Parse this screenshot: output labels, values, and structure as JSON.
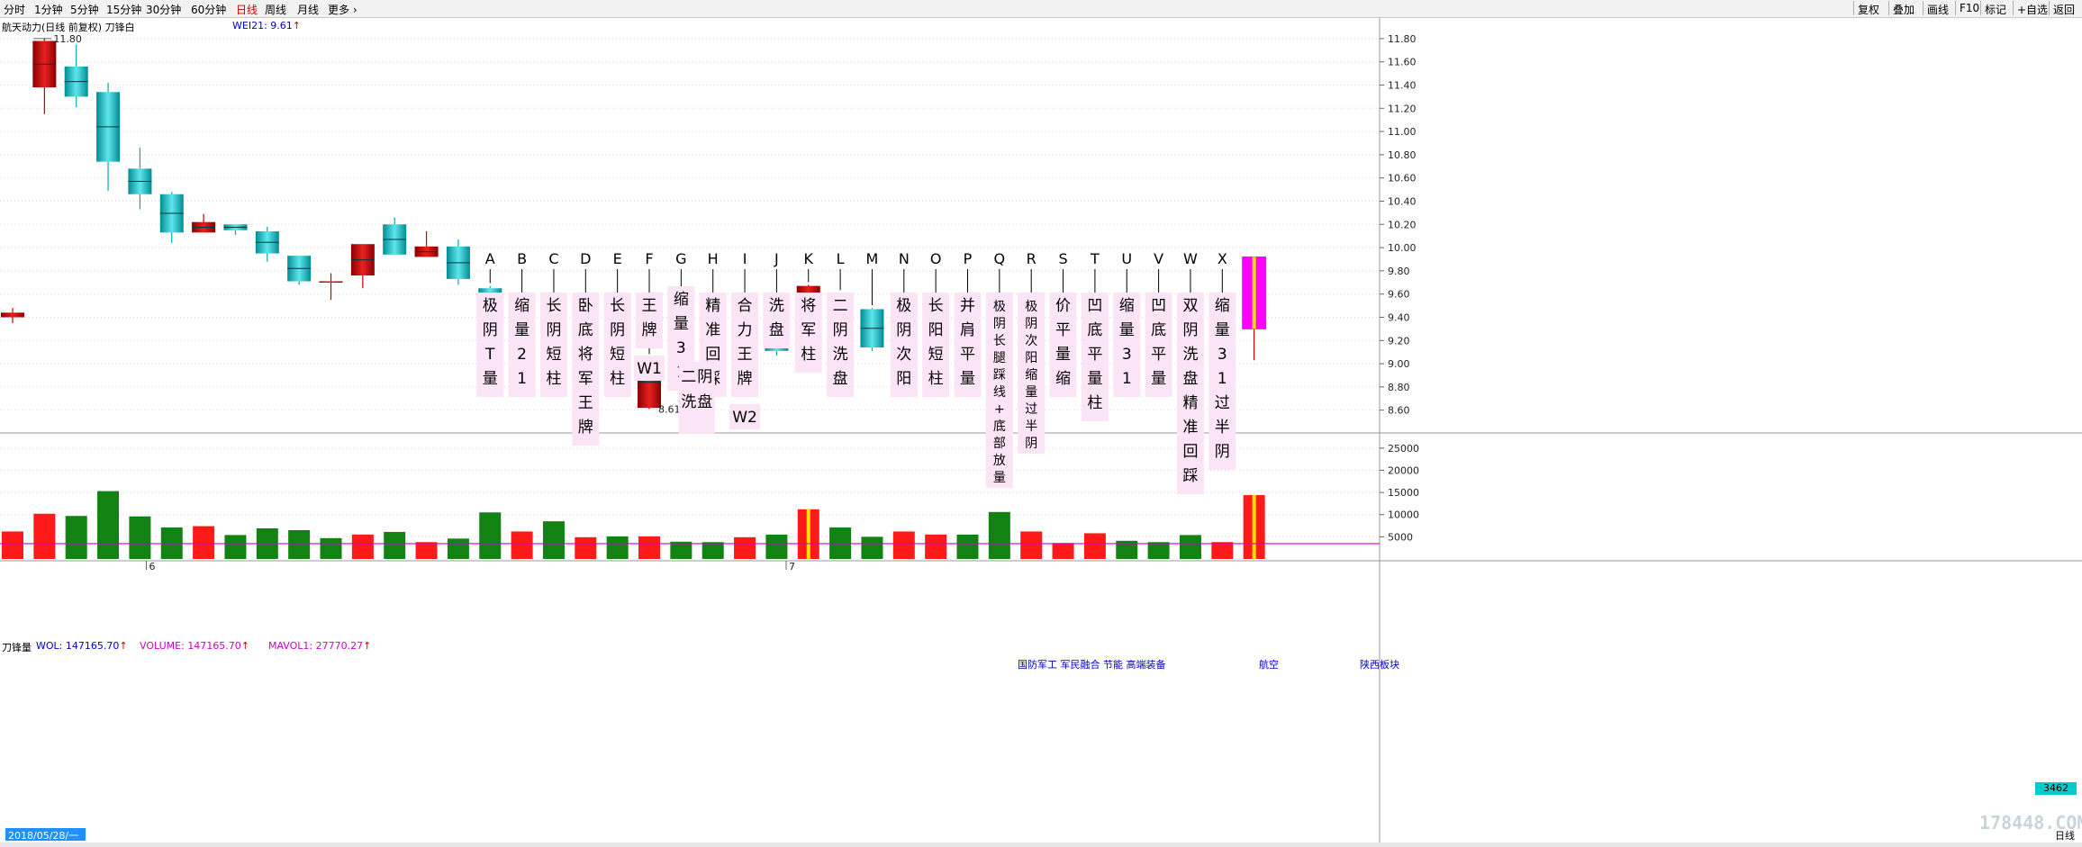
{
  "toolbar": {
    "periods": [
      "分时",
      "1分钟",
      "5分钟",
      "15分钟",
      "30分钟",
      "60分钟",
      "日线",
      "周线",
      "月线",
      "更多 ›"
    ],
    "active_period": "日线",
    "right_buttons": [
      "复权",
      "叠加",
      "画线",
      "F10",
      "标记",
      "+自选",
      "返回"
    ]
  },
  "header": {
    "title": "航天动力(日线 前复权) 刀锋白",
    "indicator": "WEI21: 9.61",
    "indicator_arrow": "↑"
  },
  "volume_header": {
    "title": "刀锋量",
    "wol": "WOL: 147165.70",
    "volume": "VOLUME: 147165.70",
    "mavol": "MAVOL1: 27770.27",
    "arrow": "↑"
  },
  "volume_labels": [
    "国防军工 军民融合 节能 高端装备",
    "航空",
    "陕西板块"
  ],
  "date_box": "2018/05/28/一",
  "volume_current": "3462",
  "watermark": "178448.COM",
  "period_label": "日线",
  "colors": {
    "up": "#cc0000",
    "down": "#00b0b8",
    "special": "#ff00ff",
    "vol_up": "#ff1a1a",
    "vol_down": "#128212",
    "ma_line": "#cc00cc"
  },
  "chart_data": {
    "type": "candlestick",
    "price_axis": {
      "ticks": [
        "11.80",
        "11.60",
        "11.40",
        "11.20",
        "11.00",
        "10.80",
        "10.60",
        "10.40",
        "10.20",
        "10.00",
        "9.80",
        "9.60",
        "9.40",
        "9.20",
        "9.00",
        "8.80",
        "8.60"
      ],
      "ylim": [
        8.52,
        11.9
      ]
    },
    "volume_axis": {
      "ticks": [
        "25000",
        "20000",
        "15000",
        "10000",
        "5000"
      ],
      "ylim": [
        0,
        27000
      ]
    },
    "high_label": "11.80",
    "low_label": "8.61",
    "candles": [
      {
        "o": 9.4,
        "c": 9.44,
        "h": 9.48,
        "l": 9.35
      },
      {
        "o": 11.38,
        "c": 11.78,
        "h": 11.8,
        "l": 11.15
      },
      {
        "o": 11.56,
        "c": 11.3,
        "h": 11.75,
        "l": 11.21
      },
      {
        "o": 11.34,
        "c": 10.74,
        "h": 11.42,
        "l": 10.49
      },
      {
        "o": 10.68,
        "c": 10.46,
        "h": 10.86,
        "l": 10.33
      },
      {
        "o": 10.46,
        "c": 10.13,
        "h": 10.48,
        "l": 10.04
      },
      {
        "o": 10.13,
        "c": 10.22,
        "h": 10.29,
        "l": 10.13
      },
      {
        "o": 10.2,
        "c": 10.15,
        "h": 10.2,
        "l": 10.11
      },
      {
        "o": 10.14,
        "c": 9.95,
        "h": 10.18,
        "l": 9.88
      },
      {
        "o": 9.93,
        "c": 9.71,
        "h": 9.93,
        "l": 9.68
      },
      {
        "o": 9.71,
        "c": 9.71,
        "h": 9.78,
        "l": 9.55
      },
      {
        "o": 9.76,
        "c": 10.03,
        "h": 10.03,
        "l": 9.65
      },
      {
        "o": 10.2,
        "c": 9.94,
        "h": 10.26,
        "l": 9.94
      },
      {
        "o": 9.92,
        "c": 10.01,
        "h": 10.14,
        "l": 9.92
      },
      {
        "o": 10.01,
        "c": 9.73,
        "h": 10.07,
        "l": 9.68
      },
      {
        "o": 9.65,
        "c": 9.1,
        "h": 9.67,
        "l": 8.88
      },
      {
        "o": 9.05,
        "c": 9.32,
        "h": 9.33,
        "l": 9.03
      },
      {
        "o": 9.32,
        "c": 8.8,
        "h": 9.35,
        "l": 8.79
      },
      {
        "o": 8.8,
        "c": 8.92,
        "h": 9.0,
        "l": 8.66
      },
      {
        "o": 9.16,
        "c": 8.87,
        "h": 9.16,
        "l": 8.84
      },
      {
        "o": 8.62,
        "c": 9.06,
        "h": 9.06,
        "l": 8.61
      },
      {
        "o": 9.08,
        "c": 8.97,
        "h": 9.08,
        "l": 8.97
      },
      {
        "o": 8.9,
        "c": 8.89,
        "h": 9.1,
        "l": 8.88
      },
      {
        "o": 8.88,
        "c": 9.18,
        "h": 9.24,
        "l": 8.88
      },
      {
        "o": 9.19,
        "c": 9.11,
        "h": 9.3,
        "l": 9.07
      },
      {
        "o": 9.11,
        "c": 9.67,
        "h": 9.68,
        "l": 9.11
      },
      {
        "o": 9.59,
        "c": 9.42,
        "h": 9.61,
        "l": 9.38
      },
      {
        "o": 9.47,
        "c": 9.14,
        "h": 9.48,
        "l": 9.11
      },
      {
        "o": 9.14,
        "c": 9.3,
        "h": 9.41,
        "l": 9.05
      },
      {
        "o": 9.21,
        "c": 9.45,
        "h": 9.45,
        "l": 9.21
      },
      {
        "o": 9.45,
        "c": 9.37,
        "h": 9.5,
        "l": 9.36
      },
      {
        "o": 9.23,
        "c": 8.91,
        "h": 9.3,
        "l": 8.63
      },
      {
        "o": 8.87,
        "c": 9.13,
        "h": 9.18,
        "l": 8.81
      },
      {
        "o": 9.13,
        "c": 9.12,
        "h": 9.17,
        "l": 9.1
      },
      {
        "o": 9.15,
        "c": 9.2,
        "h": 9.28,
        "l": 9.09
      },
      {
        "o": 9.21,
        "c": 9.18,
        "h": 9.23,
        "l": 9.04
      },
      {
        "o": 9.23,
        "c": 9.08,
        "h": 9.24,
        "l": 9.08
      },
      {
        "o": 9.08,
        "c": 8.88,
        "h": 9.12,
        "l": 8.8
      },
      {
        "o": 8.88,
        "c": 9.03,
        "h": 9.04,
        "l": 8.82
      },
      {
        "o": 9.3,
        "c": 9.92,
        "h": 9.92,
        "l": 9.03,
        "special": true
      }
    ],
    "volumes": [
      {
        "v": 6200,
        "up": true
      },
      {
        "v": 10200,
        "up": true
      },
      {
        "v": 9700,
        "up": false
      },
      {
        "v": 15300,
        "up": false
      },
      {
        "v": 9600,
        "up": false
      },
      {
        "v": 7100,
        "up": false
      },
      {
        "v": 7400,
        "up": true
      },
      {
        "v": 5400,
        "up": false
      },
      {
        "v": 6900,
        "up": false
      },
      {
        "v": 6500,
        "up": false
      },
      {
        "v": 4700,
        "up": false
      },
      {
        "v": 5500,
        "up": true
      },
      {
        "v": 6100,
        "up": false
      },
      {
        "v": 3800,
        "up": true
      },
      {
        "v": 4600,
        "up": false
      },
      {
        "v": 10500,
        "up": false
      },
      {
        "v": 6200,
        "up": true
      },
      {
        "v": 8500,
        "up": false
      },
      {
        "v": 4900,
        "up": true
      },
      {
        "v": 5100,
        "up": false
      },
      {
        "v": 5100,
        "up": true
      },
      {
        "v": 3900,
        "up": false
      },
      {
        "v": 3800,
        "up": false
      },
      {
        "v": 4900,
        "up": true
      },
      {
        "v": 5500,
        "up": false
      },
      {
        "v": 11200,
        "up": true,
        "special": true
      },
      {
        "v": 7100,
        "up": false
      },
      {
        "v": 5000,
        "up": false
      },
      {
        "v": 6200,
        "up": true
      },
      {
        "v": 5500,
        "up": true
      },
      {
        "v": 5500,
        "up": false
      },
      {
        "v": 10600,
        "up": false
      },
      {
        "v": 6200,
        "up": true
      },
      {
        "v": 3600,
        "up": true
      },
      {
        "v": 5800,
        "up": true
      },
      {
        "v": 4100,
        "up": false
      },
      {
        "v": 3800,
        "up": false
      },
      {
        "v": 5400,
        "up": false
      },
      {
        "v": 3800,
        "up": true
      },
      {
        "v": 14400,
        "up": true,
        "special": true
      }
    ],
    "mavol": 3462,
    "annotations": [
      {
        "letter": "A",
        "text": "极阴T量",
        "idx": 15
      },
      {
        "letter": "B",
        "text": "缩量21",
        "idx": 16
      },
      {
        "letter": "C",
        "text": "长阴短柱",
        "idx": 17
      },
      {
        "letter": "D",
        "text": "卧底将军王牌",
        "idx": 18
      },
      {
        "letter": "E",
        "text": "长阴短柱",
        "idx": 19
      },
      {
        "letter": "F",
        "text": "王牌",
        "idx": 20,
        "extra": "W1"
      },
      {
        "letter": "G",
        "text": "缩量31",
        "idx": 21
      },
      {
        "letter": "H",
        "text": "精准回踩",
        "idx": 22,
        "sub": "二阴洗盘"
      },
      {
        "letter": "I",
        "text": "合力王牌",
        "idx": 23,
        "extra": "W2"
      },
      {
        "letter": "J",
        "text": "洗盘",
        "idx": 24
      },
      {
        "letter": "K",
        "text": "将军柱",
        "idx": 25
      },
      {
        "letter": "L",
        "text": "二阴洗盘",
        "idx": 26
      },
      {
        "letter": "M",
        "text": "",
        "idx": 27
      },
      {
        "letter": "N",
        "text": "极阴次阳",
        "idx": 28
      },
      {
        "letter": "O",
        "text": "长阳短柱",
        "idx": 29
      },
      {
        "letter": "P",
        "text": "并肩平量",
        "idx": 30
      },
      {
        "letter": "Q",
        "text": "极阴长腿踩线+底部放量",
        "idx": 31
      },
      {
        "letter": "R",
        "text": "极阴次阳缩量过半阴",
        "idx": 32
      },
      {
        "letter": "S",
        "text": "价平量缩",
        "idx": 33
      },
      {
        "letter": "T",
        "text": "凹底平量柱",
        "idx": 34
      },
      {
        "letter": "U",
        "text": "缩量31",
        "idx": 35
      },
      {
        "letter": "V",
        "text": "凹底平量",
        "idx": 36
      },
      {
        "letter": "W",
        "text": "双阴洗盘精准回踩",
        "idx": 37
      },
      {
        "letter": "X",
        "text": "缩量31过半阴",
        "idx": 38
      }
    ],
    "x_axis_marks": [
      "6",
      "7"
    ],
    "grid": true
  }
}
